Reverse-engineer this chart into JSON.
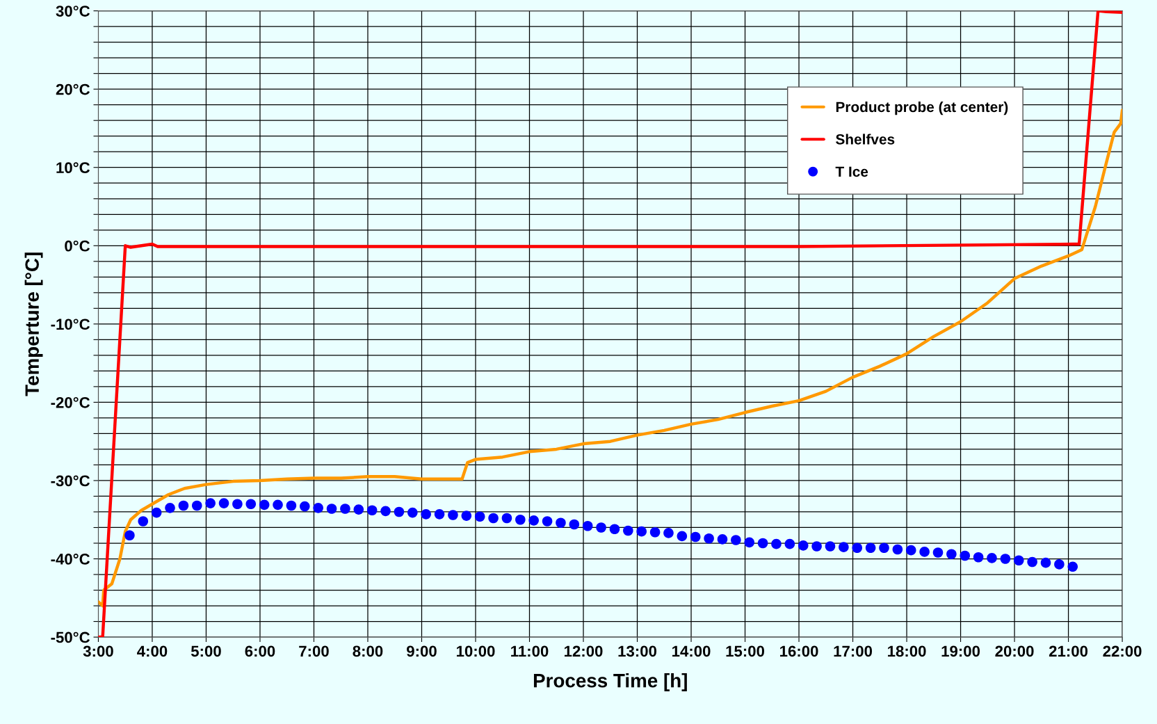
{
  "chart_data": {
    "type": "line",
    "xlabel": "Process Time [h]",
    "ylabel": "Temperture [°C]",
    "xlim": [
      3,
      22
    ],
    "ylim": [
      -50,
      30
    ],
    "xticks": [
      {
        "value": 3,
        "label": "3:00"
      },
      {
        "value": 4,
        "label": "4:00"
      },
      {
        "value": 5,
        "label": "5:00"
      },
      {
        "value": 6,
        "label": "6:00"
      },
      {
        "value": 7,
        "label": "7:00"
      },
      {
        "value": 8,
        "label": "8:00"
      },
      {
        "value": 9,
        "label": "9:00"
      },
      {
        "value": 10,
        "label": "10:00"
      },
      {
        "value": 11,
        "label": "11:00"
      },
      {
        "value": 12,
        "label": "12:00"
      },
      {
        "value": 13,
        "label": "13:00"
      },
      {
        "value": 14,
        "label": "14:00"
      },
      {
        "value": 15,
        "label": "15:00"
      },
      {
        "value": 16,
        "label": "16:00"
      },
      {
        "value": 17,
        "label": "17:00"
      },
      {
        "value": 18,
        "label": "18:00"
      },
      {
        "value": 19,
        "label": "19:00"
      },
      {
        "value": 20,
        "label": "20:00"
      },
      {
        "value": 21,
        "label": "21:00"
      },
      {
        "value": 22,
        "label": "22:00"
      }
    ],
    "yticks": [
      {
        "value": -50,
        "label": "-50°C"
      },
      {
        "value": -48,
        "label": null
      },
      {
        "value": -46,
        "label": null
      },
      {
        "value": -44,
        "label": null
      },
      {
        "value": -42,
        "label": null
      },
      {
        "value": -40,
        "label": "-40°C"
      },
      {
        "value": -38,
        "label": null
      },
      {
        "value": -36,
        "label": null
      },
      {
        "value": -34,
        "label": null
      },
      {
        "value": -32,
        "label": null
      },
      {
        "value": -30,
        "label": "-30°C"
      },
      {
        "value": -28,
        "label": null
      },
      {
        "value": -26,
        "label": null
      },
      {
        "value": -24,
        "label": null
      },
      {
        "value": -22,
        "label": null
      },
      {
        "value": -20,
        "label": "-20°C"
      },
      {
        "value": -18,
        "label": null
      },
      {
        "value": -16,
        "label": null
      },
      {
        "value": -14,
        "label": null
      },
      {
        "value": -12,
        "label": null
      },
      {
        "value": -10,
        "label": "-10°C"
      },
      {
        "value": -8,
        "label": null
      },
      {
        "value": -6,
        "label": null
      },
      {
        "value": -4,
        "label": null
      },
      {
        "value": -2,
        "label": null
      },
      {
        "value": 0,
        "label": "0°C"
      },
      {
        "value": 2,
        "label": null
      },
      {
        "value": 4,
        "label": null
      },
      {
        "value": 6,
        "label": null
      },
      {
        "value": 8,
        "label": null
      },
      {
        "value": 10,
        "label": "10°C"
      },
      {
        "value": 12,
        "label": null
      },
      {
        "value": 14,
        "label": null
      },
      {
        "value": 16,
        "label": null
      },
      {
        "value": 18,
        "label": null
      },
      {
        "value": 20,
        "label": "20°C"
      },
      {
        "value": 22,
        "label": null
      },
      {
        "value": 24,
        "label": null
      },
      {
        "value": 26,
        "label": null
      },
      {
        "value": 28,
        "label": null
      },
      {
        "value": 30,
        "label": "30°C"
      }
    ],
    "grid": true,
    "legend": "top right",
    "line_style": "solid",
    "series": [
      {
        "name": "Product probe (at center)",
        "color": "#ff9900",
        "marker": "none",
        "x": [
          3.0,
          3.08,
          3.1,
          3.25,
          3.4,
          3.5,
          3.6,
          3.8,
          4.0,
          4.3,
          4.6,
          5.0,
          5.5,
          6.0,
          6.5,
          7.0,
          7.5,
          8.0,
          8.5,
          9.0,
          9.5,
          9.75,
          9.85,
          10.0,
          10.5,
          11.0,
          11.5,
          12.0,
          12.5,
          13.0,
          13.5,
          14.0,
          14.5,
          15.0,
          15.5,
          16.0,
          16.5,
          17.0,
          17.5,
          18.0,
          18.5,
          19.0,
          19.5,
          20.0,
          20.5,
          21.0,
          21.25,
          21.5,
          21.7,
          21.85,
          21.97,
          22.0
        ],
        "values": [
          -45.5,
          -46,
          -44,
          -43.2,
          -40,
          -36.5,
          -35,
          -33.8,
          -33,
          -31.8,
          -31,
          -30.5,
          -30.1,
          -30.0,
          -29.8,
          -29.7,
          -29.7,
          -29.5,
          -29.5,
          -29.8,
          -29.8,
          -29.8,
          -27.7,
          -27.3,
          -27.0,
          -26.3,
          -26.0,
          -25.3,
          -25.0,
          -24.2,
          -23.6,
          -22.8,
          -22.2,
          -21.3,
          -20.5,
          -19.8,
          -18.6,
          -16.8,
          -15.4,
          -13.8,
          -11.6,
          -9.7,
          -7.3,
          -4.2,
          -2.6,
          -1.3,
          -0.5,
          5,
          10.5,
          14.5,
          15.6,
          17.3
        ]
      },
      {
        "name": "Shelfves",
        "color": "#ff0000",
        "marker": "none",
        "x": [
          3.0,
          3.08,
          3.5,
          3.6,
          4.0,
          4.1,
          8.0,
          12.0,
          16.0,
          21.1,
          21.2,
          21.55,
          21.7,
          22.0
        ],
        "values": [
          -50,
          -50,
          0,
          -0.2,
          0.2,
          -0.1,
          -0.1,
          -0.1,
          -0.1,
          0.2,
          0.2,
          30,
          29.9,
          29.8
        ]
      },
      {
        "name": "T Ice",
        "color": "#0000ff",
        "type": "scatter",
        "marker": "circle",
        "x": [
          3.58,
          3.83,
          4.08,
          4.33,
          4.58,
          4.83,
          5.08,
          5.33,
          5.58,
          5.83,
          6.08,
          6.33,
          6.58,
          6.83,
          7.08,
          7.33,
          7.58,
          7.83,
          8.08,
          8.33,
          8.58,
          8.83,
          9.08,
          9.33,
          9.58,
          9.83,
          10.08,
          10.33,
          10.58,
          10.83,
          11.08,
          11.33,
          11.58,
          11.83,
          12.08,
          12.33,
          12.58,
          12.83,
          13.08,
          13.33,
          13.58,
          13.83,
          14.08,
          14.33,
          14.58,
          14.83,
          15.08,
          15.33,
          15.58,
          15.83,
          16.08,
          16.33,
          16.58,
          16.83,
          17.08,
          17.33,
          17.58,
          17.83,
          18.08,
          18.33,
          18.58,
          18.83,
          19.08,
          19.33,
          19.58,
          19.83,
          20.08,
          20.33,
          20.58,
          20.83,
          21.08
        ],
        "values": [
          -37.0,
          -35.2,
          -34.1,
          -33.5,
          -33.2,
          -33.2,
          -32.9,
          -32.9,
          -33.0,
          -33.0,
          -33.1,
          -33.1,
          -33.2,
          -33.3,
          -33.5,
          -33.6,
          -33.6,
          -33.7,
          -33.8,
          -33.9,
          -34.0,
          -34.1,
          -34.3,
          -34.3,
          -34.4,
          -34.5,
          -34.6,
          -34.8,
          -34.8,
          -35.0,
          -35.1,
          -35.2,
          -35.4,
          -35.6,
          -35.8,
          -36.0,
          -36.2,
          -36.4,
          -36.5,
          -36.6,
          -36.7,
          -37.1,
          -37.2,
          -37.4,
          -37.5,
          -37.6,
          -37.9,
          -38.0,
          -38.1,
          -38.1,
          -38.3,
          -38.4,
          -38.4,
          -38.5,
          -38.6,
          -38.6,
          -38.6,
          -38.8,
          -38.9,
          -39.1,
          -39.2,
          -39.4,
          -39.6,
          -39.8,
          -39.9,
          -40.0,
          -40.2,
          -40.4,
          -40.5,
          -40.7,
          -41.0
        ]
      }
    ]
  }
}
